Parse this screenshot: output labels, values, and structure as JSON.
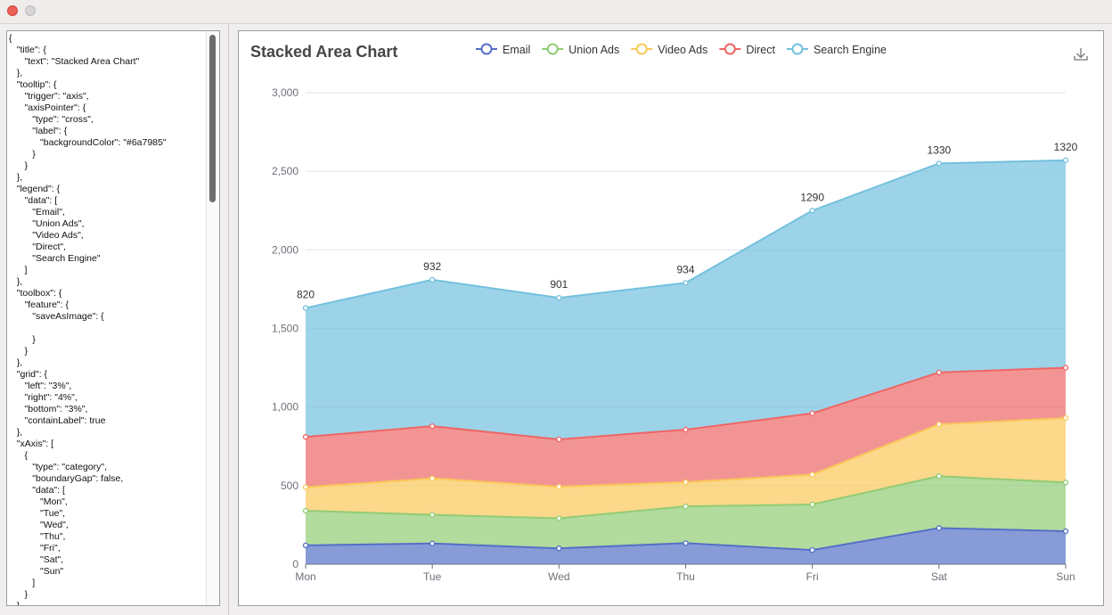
{
  "window": {
    "buttons": [
      "close",
      "minimize"
    ]
  },
  "code_editor": {
    "text": "{\n   \"title\": {\n      \"text\": \"Stacked Area Chart\"\n   },\n   \"tooltip\": {\n      \"trigger\": \"axis\",\n      \"axisPointer\": {\n         \"type\": \"cross\",\n         \"label\": {\n            \"backgroundColor\": \"#6a7985\"\n         }\n      }\n   },\n   \"legend\": {\n      \"data\": [\n         \"Email\",\n         \"Union Ads\",\n         \"Video Ads\",\n         \"Direct\",\n         \"Search Engine\"\n      ]\n   },\n   \"toolbox\": {\n      \"feature\": {\n         \"saveAsImage\": {\n\n         }\n      }\n   },\n   \"grid\": {\n      \"left\": \"3%\",\n      \"right\": \"4%\",\n      \"bottom\": \"3%\",\n      \"containLabel\": true\n   },\n   \"xAxis\": [\n      {\n         \"type\": \"category\",\n         \"boundaryGap\": false,\n         \"data\": [\n            \"Mon\",\n            \"Tue\",\n            \"Wed\",\n            \"Thu\",\n            \"Fri\",\n            \"Sat\",\n            \"Sun\"\n         ]\n      }\n   ]"
  },
  "toolbox": {
    "save_icon": "download-icon"
  },
  "chart_data": {
    "type": "area",
    "stacked": true,
    "title": "Stacked Area Chart",
    "categories": [
      "Mon",
      "Tue",
      "Wed",
      "Thu",
      "Fri",
      "Sat",
      "Sun"
    ],
    "ylim": [
      0,
      3000
    ],
    "yticks": [
      0,
      500,
      1000,
      1500,
      2000,
      2500,
      3000
    ],
    "ytick_labels": [
      "0",
      "500",
      "1,000",
      "1,500",
      "2,000",
      "2,500",
      "3,000"
    ],
    "grid": true,
    "legend_position": "top",
    "series": [
      {
        "name": "Email",
        "values": [
          120,
          132,
          101,
          134,
          90,
          230,
          210
        ],
        "color": "#5470c6"
      },
      {
        "name": "Union Ads",
        "values": [
          220,
          182,
          191,
          234,
          290,
          330,
          310
        ],
        "color": "#91cc75"
      },
      {
        "name": "Video Ads",
        "values": [
          150,
          232,
          201,
          154,
          190,
          330,
          410
        ],
        "color": "#fac858"
      },
      {
        "name": "Direct",
        "values": [
          320,
          332,
          301,
          334,
          390,
          330,
          320
        ],
        "color": "#ee6666"
      },
      {
        "name": "Search Engine",
        "values": [
          820,
          932,
          901,
          934,
          1290,
          1330,
          1320
        ],
        "color": "#73c0de"
      }
    ],
    "top_labels": [
      "820",
      "932",
      "901",
      "934",
      "1290",
      "1330",
      "1320"
    ]
  }
}
